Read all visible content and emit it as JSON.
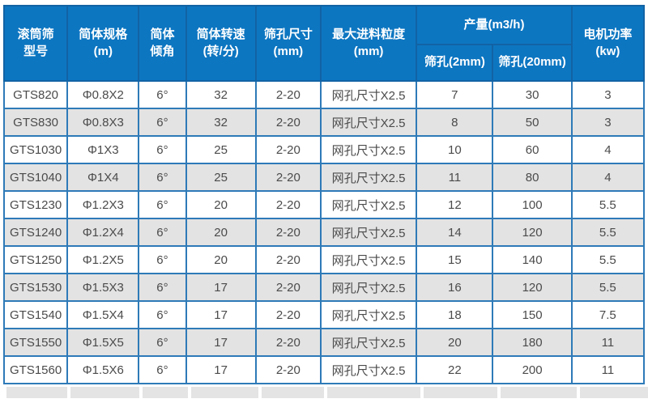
{
  "table": {
    "headers": {
      "model": "滚筒筛\n型号",
      "spec": "简体规格\n(m)",
      "incline": "简体\n倾角",
      "speed": "简体转速\n(转/分)",
      "hole": "筛孔尺寸\n(mm)",
      "feed": "最大进料粒度\n(mm)",
      "capacity": "产量(m3/h)",
      "capacity_2mm": "筛孔(2mm)",
      "capacity_20mm": "筛孔(20mm)",
      "power": "电机功率\n(kw)"
    }
  },
  "colors": {
    "header_bg": "#0d76c1",
    "border_blue": "#2e7ab8",
    "header_border": "#1263a4",
    "row_bg": "#ffffff",
    "row_alt_bg": "#e3e3e3",
    "body_text": "#4b4b4b",
    "header_text": "#ffffff"
  },
  "chart_data": {
    "type": "table",
    "title": "",
    "columns": [
      "滚筒筛型号",
      "简体规格(m)",
      "简体倾角",
      "简体转速(转/分)",
      "筛孔尺寸(mm)",
      "最大进料粒度(mm)",
      "产量(m3/h) 筛孔(2mm)",
      "产量(m3/h) 筛孔(20mm)",
      "电机功率(kw)"
    ],
    "rows": [
      [
        "GTS820",
        "Φ0.8X2",
        "6°",
        "32",
        "2-20",
        "网孔尺寸X2.5",
        "7",
        "30",
        "3"
      ],
      [
        "GTS830",
        "Φ0.8X3",
        "6°",
        "32",
        "2-20",
        "网孔尺寸X2.5",
        "8",
        "50",
        "3"
      ],
      [
        "GTS1030",
        "Φ1X3",
        "6°",
        "25",
        "2-20",
        "网孔尺寸X2.5",
        "10",
        "60",
        "4"
      ],
      [
        "GTS1040",
        "Φ1X4",
        "6°",
        "25",
        "2-20",
        "网孔尺寸X2.5",
        "11",
        "80",
        "4"
      ],
      [
        "GTS1230",
        "Φ1.2X3",
        "6°",
        "20",
        "2-20",
        "网孔尺寸X2.5",
        "12",
        "100",
        "5.5"
      ],
      [
        "GTS1240",
        "Φ1.2X4",
        "6°",
        "20",
        "2-20",
        "网孔尺寸X2.5",
        "14",
        "120",
        "5.5"
      ],
      [
        "GTS1250",
        "Φ1.2X5",
        "6°",
        "20",
        "2-20",
        "网孔尺寸X2.5",
        "15",
        "140",
        "5.5"
      ],
      [
        "GTS1530",
        "Φ1.5X3",
        "6°",
        "17",
        "2-20",
        "网孔尺寸X2.5",
        "16",
        "120",
        "5.5"
      ],
      [
        "GTS1540",
        "Φ1.5X4",
        "6°",
        "17",
        "2-20",
        "网孔尺寸X2.5",
        "18",
        "150",
        "7.5"
      ],
      [
        "GTS1550",
        "Φ1.5X5",
        "6°",
        "17",
        "2-20",
        "网孔尺寸X2.5",
        "20",
        "180",
        "11"
      ],
      [
        "GTS1560",
        "Φ1.5X6",
        "6°",
        "17",
        "2-20",
        "网孔尺寸X2.5",
        "22",
        "200",
        "11"
      ]
    ]
  }
}
